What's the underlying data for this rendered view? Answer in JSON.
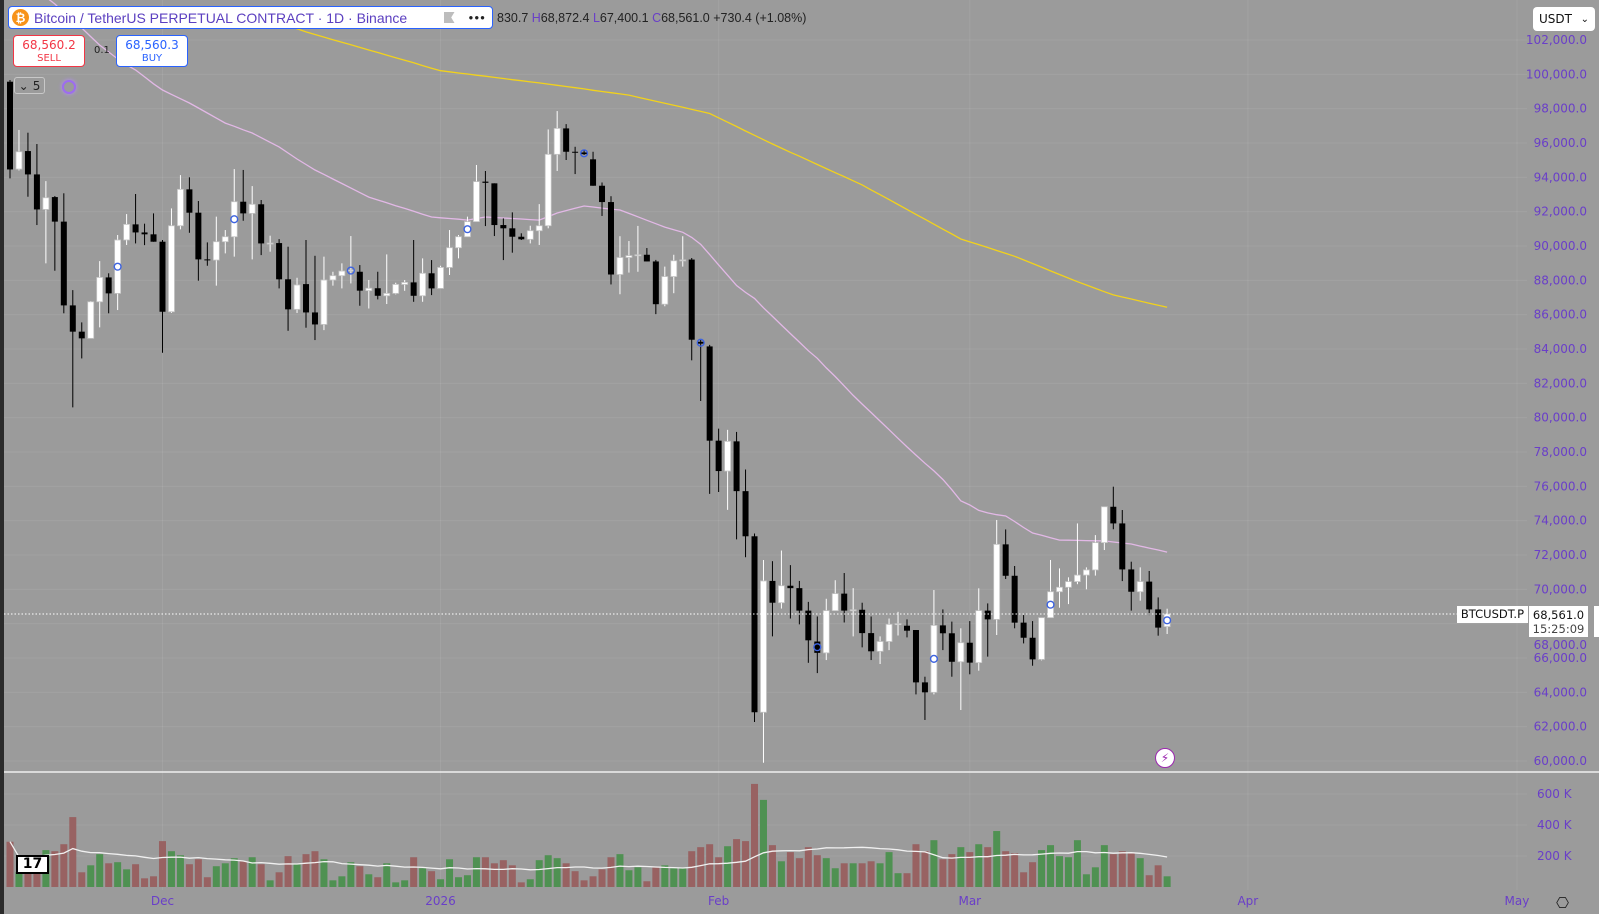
{
  "header": {
    "symbol_icon": "bitcoin-icon",
    "title": "Bitcoin / TetherUS PERPETUAL CONTRACT · 1D · Binance",
    "ohlc": {
      "o_partial": "830.7",
      "h_key": "H",
      "h": "68,872.4",
      "l_key": "L",
      "l": "67,400.1",
      "c_key": "C",
      "c": "68,561.0",
      "change": "+730.4 (+1.08%)"
    },
    "more_icon": "more-horizontal-icon"
  },
  "trade": {
    "sell_price": "68,560.2",
    "sell_label": "SELL",
    "quantity": "0.1",
    "buy_price": "68,560.3",
    "buy_label": "BUY"
  },
  "indicators_toggle": {
    "count": "5"
  },
  "currency_select": {
    "value": "USDT"
  },
  "last_price": {
    "symbol": "BTCUSDT.P",
    "price": "68,561.0",
    "countdown": "15:25:09"
  },
  "colors": {
    "background": "#9b9b9b",
    "up_candle": "#ffffff",
    "down_candle": "#000000",
    "volume_up": "#4f9152",
    "volume_down": "#986262",
    "ma_fast": "#e2b8e6",
    "ma_slow": "#f2d21b",
    "volume_ma": "#f0f0f0",
    "axis_text": "#6a3fc8",
    "marker": "#3d63e0"
  },
  "chart_data": {
    "type": "candlestick",
    "price_axis": {
      "range": [
        60000,
        102000
      ],
      "ticks": [
        "102,000.0",
        "100,000.0",
        "98,000.0",
        "96,000.0",
        "94,000.0",
        "92,000.0",
        "90,000.0",
        "88,000.0",
        "86,000.0",
        "84,000.0",
        "82,000.0",
        "80,000.0",
        "78,000.0",
        "76,000.0",
        "74,000.0",
        "72,000.0",
        "70,000.0",
        "68,000.0",
        "66,000.0",
        "64,000.0",
        "62,000.0",
        "60,000.0"
      ]
    },
    "volume_axis": {
      "ticks": [
        "600 K",
        "400 K",
        "200 K"
      ]
    },
    "time_axis": {
      "ticks": [
        "Dec",
        "2026",
        "Feb",
        "Mar",
        "Apr",
        "May"
      ]
    },
    "grid": true,
    "candles_ohlc": [
      [
        99570,
        99670,
        93940,
        94460
      ],
      [
        94480,
        96760,
        94400,
        95490
      ],
      [
        95530,
        96600,
        92870,
        94170
      ],
      [
        94170,
        95940,
        91220,
        92130
      ],
      [
        92130,
        93780,
        88990,
        92810
      ],
      [
        92850,
        92910,
        88560,
        91420
      ],
      [
        91420,
        93070,
        86080,
        86540
      ],
      [
        86540,
        87430,
        80600,
        85010
      ],
      [
        85010,
        85550,
        83450,
        84620
      ],
      [
        84620,
        86790,
        84620,
        86750
      ],
      [
        86750,
        89120,
        85260,
        88170
      ],
      [
        88170,
        88410,
        86080,
        87240
      ],
      [
        87240,
        90640,
        86270,
        90350
      ],
      [
        90350,
        91860,
        90060,
        91260
      ],
      [
        91260,
        93030,
        90150,
        90790
      ],
      [
        90790,
        91300,
        90050,
        90680
      ],
      [
        90680,
        91900,
        90250,
        90250
      ],
      [
        90250,
        90350,
        83780,
        86170
      ],
      [
        86170,
        92190,
        86100,
        91180
      ],
      [
        91180,
        94130,
        90970,
        93300
      ],
      [
        93300,
        94000,
        90770,
        91940
      ],
      [
        91940,
        92620,
        87980,
        89220
      ],
      [
        89220,
        90210,
        88850,
        89180
      ],
      [
        89180,
        91710,
        87690,
        90250
      ],
      [
        90250,
        90930,
        89570,
        90540
      ],
      [
        90540,
        94480,
        89380,
        92580
      ],
      [
        92580,
        94430,
        91470,
        91900
      ],
      [
        91900,
        93490,
        89220,
        92430
      ],
      [
        92430,
        92680,
        89470,
        90150
      ],
      [
        90150,
        90600,
        89670,
        90170
      ],
      [
        90170,
        90400,
        87530,
        88060
      ],
      [
        88060,
        89960,
        85060,
        86310
      ],
      [
        86310,
        88150,
        86100,
        87730
      ],
      [
        87780,
        90350,
        85240,
        86130
      ],
      [
        86130,
        89430,
        84520,
        85430
      ],
      [
        85430,
        89380,
        85100,
        88020
      ],
      [
        88020,
        88500,
        87690,
        88270
      ],
      [
        88270,
        88990,
        87530,
        88540
      ],
      [
        88540,
        90580,
        87820,
        88600
      ],
      [
        88500,
        88890,
        86520,
        87400
      ],
      [
        87400,
        88020,
        86360,
        87540
      ],
      [
        87540,
        88500,
        86890,
        87100
      ],
      [
        87100,
        89510,
        86620,
        87240
      ],
      [
        87240,
        87860,
        87180,
        87760
      ],
      [
        87760,
        88020,
        87390,
        87880
      ],
      [
        87880,
        90350,
        86750,
        87100
      ],
      [
        87100,
        89280,
        86750,
        88410
      ],
      [
        88410,
        89180,
        87140,
        87530
      ],
      [
        87530,
        88850,
        87530,
        88750
      ],
      [
        88750,
        90930,
        88310,
        89900
      ],
      [
        89900,
        90640,
        89280,
        90540
      ],
      [
        90540,
        91710,
        90540,
        91420
      ],
      [
        91420,
        94720,
        91420,
        93750
      ],
      [
        93750,
        94370,
        91160,
        93680
      ],
      [
        93650,
        93650,
        90580,
        91220
      ],
      [
        91220,
        91610,
        89180,
        91030
      ],
      [
        91030,
        91960,
        89610,
        90540
      ],
      [
        90540,
        90740,
        90350,
        90390
      ],
      [
        90390,
        91180,
        90150,
        90890
      ],
      [
        90890,
        92440,
        90060,
        91180
      ],
      [
        91180,
        96790,
        91030,
        95340
      ],
      [
        95340,
        97860,
        94370,
        96850
      ],
      [
        96850,
        97100,
        95010,
        95490
      ],
      [
        95490,
        95780,
        94190,
        95450
      ],
      [
        95450,
        95590,
        95300,
        95350
      ],
      [
        95050,
        95490,
        93510,
        93510
      ],
      [
        93510,
        93700,
        91750,
        92560
      ],
      [
        92560,
        92900,
        87760,
        88340
      ],
      [
        88340,
        90570,
        87190,
        89330
      ],
      [
        89330,
        90290,
        88450,
        89440
      ],
      [
        89440,
        91170,
        88500,
        89490
      ],
      [
        89490,
        89880,
        89100,
        89100
      ],
      [
        89100,
        89190,
        86030,
        86610
      ],
      [
        86610,
        88800,
        86490,
        88220
      ],
      [
        88220,
        89490,
        87250,
        89140
      ],
      [
        89140,
        90570,
        88800,
        89190
      ],
      [
        89210,
        89300,
        83340,
        84540
      ],
      [
        84420,
        84540,
        80970,
        84310
      ],
      [
        84150,
        84240,
        75560,
        78660
      ],
      [
        78660,
        79360,
        75670,
        76890
      ],
      [
        76890,
        79290,
        74630,
        78620
      ],
      [
        78620,
        79170,
        72910,
        75720
      ],
      [
        75720,
        76980,
        71870,
        73090
      ],
      [
        73090,
        73250,
        62270,
        62840
      ],
      [
        62840,
        71710,
        59900,
        70490
      ],
      [
        70490,
        71640,
        67260,
        69220
      ],
      [
        69220,
        72260,
        68880,
        70210
      ],
      [
        70210,
        71410,
        68300,
        70070
      ],
      [
        70070,
        70490,
        67960,
        68760
      ],
      [
        68760,
        69270,
        65720,
        67030
      ],
      [
        66960,
        68420,
        65120,
        66300
      ],
      [
        66300,
        69450,
        65880,
        68760
      ],
      [
        68760,
        70530,
        68760,
        69750
      ],
      [
        69750,
        70950,
        68070,
        68760
      ],
      [
        68760,
        70070,
        67260,
        68810
      ],
      [
        68810,
        69220,
        66620,
        67450
      ],
      [
        67450,
        68420,
        65880,
        66390
      ],
      [
        66390,
        67260,
        65650,
        66960
      ],
      [
        66960,
        68300,
        66460,
        67960
      ],
      [
        67960,
        68690,
        67310,
        68000
      ],
      [
        67880,
        68250,
        67200,
        67590
      ],
      [
        67630,
        67630,
        63880,
        64580
      ],
      [
        64580,
        64910,
        62390,
        64000
      ],
      [
        64000,
        69960,
        63880,
        67900
      ],
      [
        67900,
        68830,
        66460,
        67440
      ],
      [
        67440,
        68120,
        64910,
        65780
      ],
      [
        65780,
        67730,
        62970,
        66890
      ],
      [
        66890,
        68150,
        65050,
        65730
      ],
      [
        65730,
        70060,
        65260,
        68760
      ],
      [
        68760,
        69180,
        66080,
        68250
      ],
      [
        68250,
        74040,
        67340,
        72620
      ],
      [
        72620,
        73490,
        70600,
        70790
      ],
      [
        70790,
        71360,
        67730,
        68060
      ],
      [
        68060,
        68500,
        66850,
        67180
      ],
      [
        67180,
        68150,
        65550,
        65920
      ],
      [
        65920,
        68350,
        65860,
        68350
      ],
      [
        68350,
        71710,
        68350,
        69860
      ],
      [
        69860,
        71220,
        68930,
        70120
      ],
      [
        70120,
        70700,
        69140,
        70450
      ],
      [
        70450,
        73840,
        70300,
        70830
      ],
      [
        70830,
        71280,
        70000,
        71130
      ],
      [
        71130,
        73160,
        70800,
        72720
      ],
      [
        72720,
        74810,
        72290,
        74810
      ],
      [
        74810,
        75980,
        73500,
        73840
      ],
      [
        73840,
        74620,
        70480,
        71160
      ],
      [
        71160,
        71610,
        68760,
        69860
      ],
      [
        69860,
        71280,
        69340,
        70450
      ],
      [
        70450,
        71070,
        68500,
        68830
      ],
      [
        68830,
        69530,
        67300,
        67770
      ],
      [
        67830.7,
        68872.4,
        67400.1,
        68561.0
      ]
    ],
    "volume_k": [
      292,
      97,
      194,
      205,
      238,
      231,
      276,
      451,
      95,
      140,
      212,
      153,
      160,
      114,
      147,
      56,
      69,
      296,
      231,
      205,
      147,
      179,
      63,
      134,
      153,
      186,
      166,
      192,
      147,
      43,
      95,
      199,
      147,
      212,
      231,
      179,
      43,
      69,
      160,
      134,
      82,
      63,
      153,
      30,
      43,
      192,
      121,
      102,
      50,
      179,
      63,
      76,
      192,
      192,
      153,
      173,
      140,
      30,
      50,
      173,
      205,
      186,
      153,
      102,
      43,
      69,
      114,
      192,
      212,
      108,
      127,
      37,
      125,
      140,
      121,
      121,
      231,
      257,
      276,
      192,
      263,
      309,
      296,
      665,
      562,
      270,
      166,
      225,
      186,
      257,
      205,
      186,
      121,
      153,
      153,
      153,
      166,
      153,
      225,
      89,
      89,
      276,
      231,
      302,
      179,
      212,
      257,
      225,
      276,
      257,
      361,
      231,
      218,
      95,
      160,
      238,
      270,
      199,
      192,
      302,
      82,
      127,
      270,
      212,
      231,
      218,
      186,
      76,
      140,
      69
    ],
    "ma_fast": [
      106500,
      106000,
      105500,
      105000,
      104500,
      104100,
      103600,
      103100,
      102700,
      102200,
      101700,
      101300,
      100900,
      100550,
      100250,
      99850,
      99450,
      99090,
      98830,
      98580,
      98330,
      98040,
      97750,
      97450,
      97160,
      96970,
      96770,
      96580,
      96310,
      96040,
      95770,
      95420,
      95070,
      94750,
      94430,
      94170,
      93900,
      93640,
      93370,
      93110,
      92850,
      92680,
      92520,
      92350,
      92190,
      92020,
      91850,
      91690,
      91640,
      91600,
      91560,
      91510,
      91600,
      91690,
      91660,
      91630,
      91600,
      91570,
      91540,
      91510,
      91710,
      91920,
      92060,
      92200,
      92330,
      92270,
      92210,
      92150,
      92100,
      91900,
      91700,
      91500,
      91300,
      91100,
      90950,
      90800,
      90500,
      90100,
      89500,
      88900,
      88300,
      87700,
      87300,
      86950,
      86400,
      85900,
      85400,
      84900,
      84400,
      83900,
      83460,
      82900,
      82400,
      81850,
      81300,
      80790,
      80300,
      79800,
      79300,
      78800,
      78300,
      77820,
      77350,
      76900,
      76400,
      75800,
      75150,
      74910,
      74600,
      74450,
      74350,
      74270,
      73950,
      73600,
      73280,
      73150,
      73000,
      72870,
      72860,
      72850,
      72840,
      72830,
      72820,
      72760,
      72700,
      72640,
      72520,
      72400,
      72290,
      72170
    ],
    "ma_slow": [
      null,
      null,
      null,
      null,
      null,
      null,
      null,
      null,
      null,
      null,
      null,
      null,
      null,
      null,
      null,
      null,
      null,
      null,
      null,
      null,
      null,
      null,
      null,
      null,
      null,
      null,
      null,
      null,
      103300,
      103150,
      103000,
      102820,
      102650,
      102470,
      102320,
      102170,
      102020,
      101870,
      101720,
      101570,
      101420,
      101270,
      101120,
      100970,
      100820,
      100670,
      100510,
      100360,
      100210,
      100150,
      100080,
      100020,
      99950,
      99890,
      99820,
      99760,
      99690,
      99630,
      99560,
      99500,
      99430,
      99360,
      99290,
      99220,
      99150,
      99070,
      99000,
      98930,
      98860,
      98790,
      98670,
      98550,
      98430,
      98310,
      98200,
      98080,
      97960,
      97840,
      97720,
      97470,
      97210,
      96960,
      96700,
      96450,
      96190,
      95940,
      95700,
      95460,
      95230,
      94990,
      94750,
      94510,
      94270,
      94040,
      93800,
      93560,
      93270,
      92990,
      92700,
      92420,
      92130,
      91840,
      91560,
      91270,
      90980,
      90700,
      90410,
      90240,
      90080,
      89910,
      89740,
      89570,
      89400,
      89190,
      88980,
      88770,
      88550,
      88340,
      88130,
      87920,
      87730,
      87530,
      87340,
      87150,
      87030,
      86910,
      86790,
      86670,
      86550,
      86430
    ]
  }
}
